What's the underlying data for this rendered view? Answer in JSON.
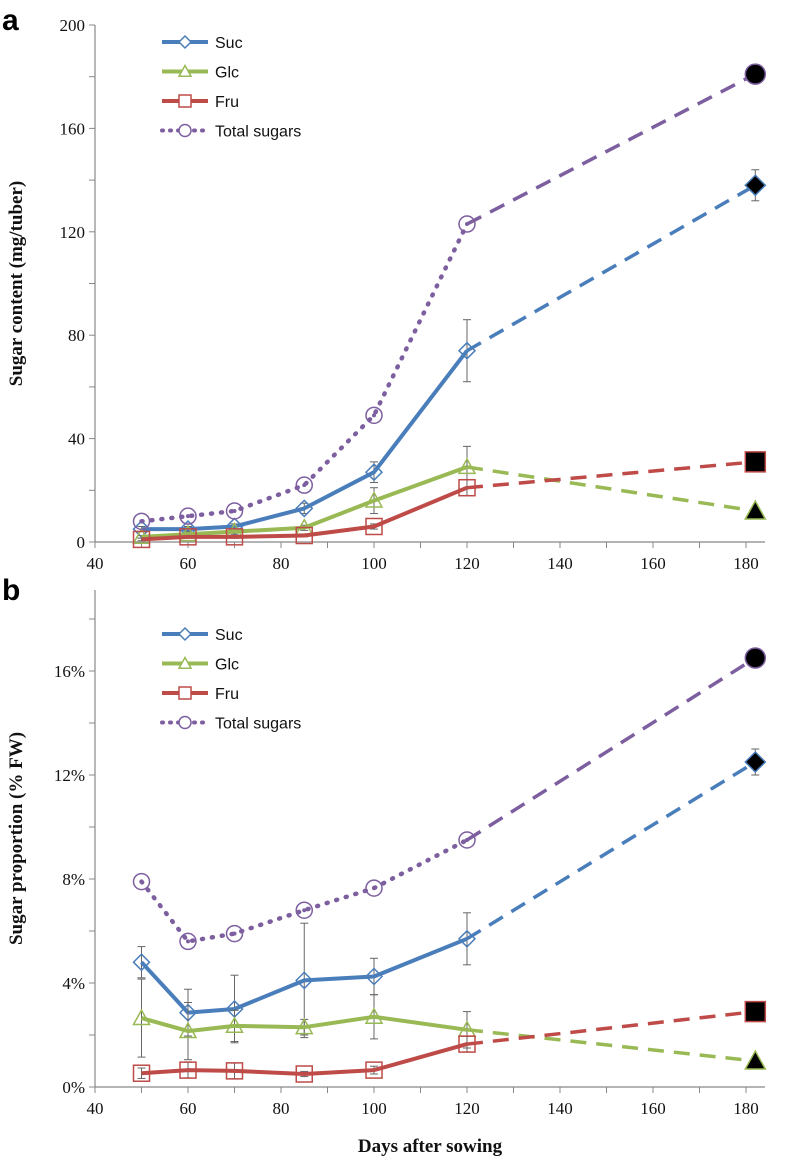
{
  "chart_data": [
    {
      "type": "line",
      "panel_label": "a",
      "ylabel": "Sugar content (mg/tuber)",
      "xlabel": "",
      "xlim": [
        40,
        180
      ],
      "ylim": [
        0,
        200
      ],
      "xticks": [
        40,
        60,
        80,
        100,
        120,
        140,
        160,
        180
      ],
      "yticks": [
        0,
        40,
        80,
        120,
        160,
        200
      ],
      "ytick_labels": [
        "0",
        "40",
        "80",
        "120",
        "160",
        "200"
      ],
      "x": [
        50,
        60,
        70,
        85,
        100,
        120
      ],
      "x_final": 182,
      "legend_placement": "top-left",
      "series": [
        {
          "name": "Suc",
          "color": "#4a7ebb",
          "marker": "diamond",
          "values": [
            5,
            5,
            6,
            13,
            27,
            74
          ],
          "errors": [
            1,
            1,
            1,
            2,
            4,
            12
          ],
          "final": 138,
          "final_error": 6
        },
        {
          "name": "Glc",
          "color": "#98b954",
          "marker": "triangle",
          "values": [
            2,
            3,
            4,
            5.5,
            16,
            29
          ],
          "errors": [
            0.5,
            1,
            1,
            1,
            5,
            8
          ],
          "final": 12,
          "final_error": 0
        },
        {
          "name": "Fru",
          "color": "#be4b48",
          "marker": "square",
          "values": [
            1,
            2,
            2,
            2.5,
            6,
            21
          ],
          "errors": [
            0.5,
            0.5,
            0.5,
            0.5,
            1,
            3
          ],
          "final": 31,
          "final_error": 0
        },
        {
          "name": "Total sugars",
          "color": "#7d5fa0",
          "marker": "circle",
          "dotted": true,
          "values": [
            8,
            10,
            12,
            22,
            49,
            123
          ],
          "errors": [
            0,
            0,
            0,
            0,
            0,
            0
          ],
          "final": 181,
          "final_error": 0
        }
      ]
    },
    {
      "type": "line",
      "panel_label": "b",
      "ylabel": "Sugar proportion (% FW)",
      "xlabel": "Days after sowing",
      "xlim": [
        40,
        180
      ],
      "ylim": [
        0,
        18
      ],
      "xticks": [
        40,
        60,
        80,
        100,
        120,
        140,
        160,
        180
      ],
      "yticks": [
        0,
        4,
        8,
        12,
        16
      ],
      "ytick_labels": [
        "0%",
        "4%",
        "8%",
        "12%",
        "16%"
      ],
      "x": [
        50,
        60,
        70,
        85,
        100,
        120
      ],
      "x_final": 182,
      "legend_placement": "top-left",
      "series": [
        {
          "name": "Suc",
          "color": "#4a7ebb",
          "marker": "diamond",
          "values": [
            4.8,
            2.86,
            3.0,
            4.1,
            4.25,
            5.7
          ],
          "errors": [
            0.6,
            0.9,
            1.3,
            2.2,
            0.7,
            1.0
          ],
          "final": 12.5,
          "final_error": 0.5
        },
        {
          "name": "Glc",
          "color": "#98b954",
          "marker": "triangle",
          "values": [
            2.65,
            2.15,
            2.35,
            2.3,
            2.7,
            2.2
          ],
          "errors": [
            1.5,
            1.1,
            0.6,
            0.3,
            0.85,
            0.7
          ],
          "final": 1.0,
          "final_error": 0
        },
        {
          "name": "Fru",
          "color": "#be4b48",
          "marker": "square",
          "values": [
            0.53,
            0.65,
            0.62,
            0.5,
            0.65,
            1.65
          ],
          "errors": [
            0.2,
            0.3,
            0.3,
            0.1,
            0.15,
            0.3
          ],
          "final": 2.9,
          "final_error": 0
        },
        {
          "name": "Total sugars",
          "color": "#7d5fa0",
          "marker": "circle",
          "dotted": true,
          "values": [
            7.9,
            5.6,
            5.9,
            6.8,
            7.65,
            9.5
          ],
          "errors": [
            0,
            0,
            0,
            0,
            0,
            0
          ],
          "final": 16.5,
          "final_error": 0
        }
      ]
    }
  ]
}
